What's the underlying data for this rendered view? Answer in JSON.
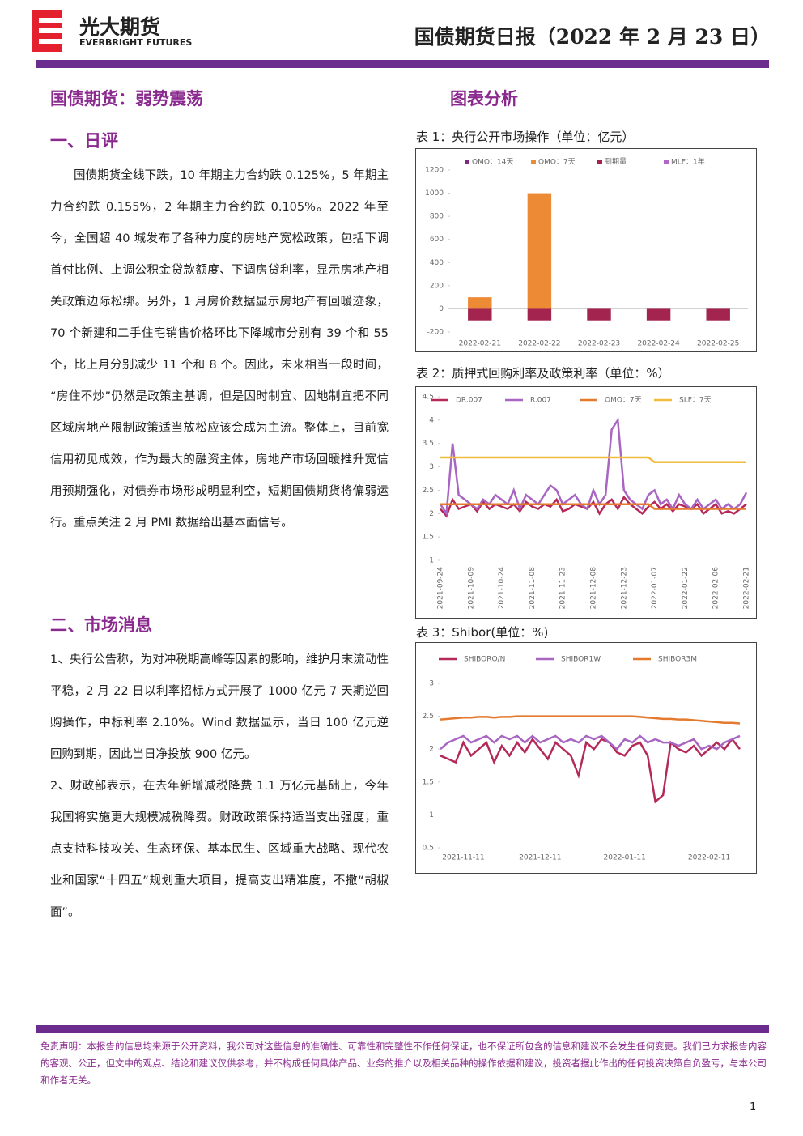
{
  "header": {
    "company": "光大期货",
    "company_en": "EVERBRIGHT FUTURES",
    "title": "国债期货日报（2022 年 2 月 23 日）"
  },
  "left": {
    "headline": "国债期货：弱势震荡",
    "section1": {
      "title": "一、日评",
      "text": "国债期货全线下跌，10 年期主力合约跌 0.125%，5 年期主力合约跌 0.155%，2 年期主力合约跌 0.105%。2022 年至今，全国超 40 城发布了各种力度的房地产宽松政策，包括下调首付比例、上调公积金贷款额度、下调房贷利率，显示房地产相关政策边际松绑。另外，1 月房价数据显示房地产有回暖迹象，70 个新建和二手住宅销售价格环比下降城市分别有 39 个和 55 个，比上月分别减少 11 个和 8 个。因此，未来相当一段时间，“房住不炒”仍然是政策主基调，但是因时制宜、因地制宜把不同区域房地产限制政策适当放松应该会成为主流。整体上，目前宽信用初见成效，作为最大的融资主体，房地产市场回暖推升宽信用预期强化，对债券市场形成明显利空，短期国债期货将偏弱运行。重点关注 2 月 PMI 数据给出基本面信号。"
    },
    "section2": {
      "title": "二、市场消息",
      "items": [
        "1、央行公告称，为对冲税期高峰等因素的影响，维护月末流动性平稳，2 月 22 日以利率招标方式开展了 1000 亿元 7 天期逆回购操作，中标利率 2.10%。Wind 数据显示，当日 100 亿元逆回购到期，因此当日净投放 900 亿元。",
        "2、财政部表示，在去年新增减税降费 1.1 万亿元基础上，今年我国将实施更大规模减税降费。财政政策保持适当支出强度，重点支持科技攻关、生态环保、基本民生、区域重大战略、现代农业和国家“十四五”规划重大项目，提高支出精准度，不撒“胡椒面”。"
      ]
    }
  },
  "right": {
    "headline": "图表分析"
  },
  "chart_data": [
    {
      "type": "bar",
      "title": "表 1：央行公开市场操作（单位：亿元）",
      "categories": [
        "2022-02-21",
        "2022-02-22",
        "2022-02-23",
        "2022-02-24",
        "2022-02-25"
      ],
      "series": [
        {
          "name": "OMO：14天",
          "color": "#7b2a7e",
          "values": [
            0,
            0,
            0,
            0,
            0
          ]
        },
        {
          "name": "OMO：7天",
          "color": "#ed8a36",
          "values": [
            100,
            1000,
            0,
            0,
            0
          ]
        },
        {
          "name": "到期量",
          "color": "#a3254f",
          "values": [
            -100,
            -100,
            -100,
            -100,
            -100
          ]
        },
        {
          "name": "MLF：1年",
          "color": "#b565c6",
          "values": [
            0,
            0,
            0,
            0,
            0
          ]
        }
      ],
      "ylim": [
        -200,
        1200
      ],
      "yticks": [
        -200,
        0,
        200,
        400,
        600,
        800,
        1000,
        1200
      ]
    },
    {
      "type": "line",
      "title": "表 2：质押式回购利率及政策利率（单位：%）",
      "categories": [
        "2021-09-24",
        null,
        null,
        null,
        null,
        "2021-10-09",
        null,
        null,
        null,
        null,
        "2021-10-24",
        null,
        null,
        null,
        null,
        "2021-11-08",
        null,
        null,
        null,
        null,
        "2021-11-23",
        null,
        null,
        null,
        null,
        "2021-12-08",
        null,
        null,
        null,
        null,
        "2021-12-23",
        null,
        null,
        null,
        null,
        "2022-01-07",
        null,
        null,
        null,
        null,
        "2022-01-22",
        null,
        null,
        null,
        null,
        "2022-02-06",
        null,
        null,
        null,
        null,
        "2022-02-21"
      ],
      "series": [
        {
          "name": "DR.007",
          "color": "#b5285a",
          "values": [
            2.1,
            1.95,
            2.3,
            2.1,
            2.15,
            2.2,
            2.05,
            2.25,
            2.1,
            2.2,
            2.15,
            2.1,
            2.2,
            2.05,
            2.25,
            2.15,
            2.1,
            2.2,
            2.15,
            2.3,
            2.05,
            2.1,
            2.2,
            2.15,
            2.1,
            2.25,
            2.0,
            2.2,
            2.3,
            2.1,
            2.35,
            2.2,
            2.1,
            2.0,
            2.15,
            2.25,
            2.1,
            2.2,
            2.05,
            2.2,
            2.15,
            2.1,
            2.2,
            2.0,
            2.1,
            2.2,
            2.0,
            2.05,
            2.0,
            2.1,
            2.2
          ]
        },
        {
          "name": "R.007",
          "color": "#a865c2",
          "values": [
            2.2,
            2.0,
            3.5,
            2.4,
            2.3,
            2.2,
            2.1,
            2.3,
            2.2,
            2.4,
            2.3,
            2.2,
            2.5,
            2.1,
            2.4,
            2.3,
            2.2,
            2.4,
            2.6,
            2.5,
            2.2,
            2.3,
            2.4,
            2.2,
            2.1,
            2.5,
            2.2,
            2.4,
            3.8,
            4.0,
            2.5,
            2.3,
            2.2,
            2.1,
            2.4,
            2.5,
            2.2,
            2.3,
            2.1,
            2.4,
            2.2,
            2.1,
            2.3,
            2.1,
            2.2,
            2.3,
            2.1,
            2.2,
            2.1,
            2.2,
            2.45
          ]
        },
        {
          "name": "OMO：7天",
          "color": "#e47a2e",
          "values": [
            2.2,
            2.2,
            2.2,
            2.2,
            2.2,
            2.2,
            2.2,
            2.2,
            2.2,
            2.2,
            2.2,
            2.2,
            2.2,
            2.2,
            2.2,
            2.2,
            2.2,
            2.2,
            2.2,
            2.2,
            2.2,
            2.2,
            2.2,
            2.2,
            2.2,
            2.2,
            2.2,
            2.2,
            2.2,
            2.2,
            2.2,
            2.2,
            2.2,
            2.2,
            2.2,
            2.1,
            2.1,
            2.1,
            2.1,
            2.1,
            2.1,
            2.1,
            2.1,
            2.1,
            2.1,
            2.1,
            2.1,
            2.1,
            2.1,
            2.1,
            2.1
          ]
        },
        {
          "name": "SLF：7天",
          "color": "#f0bd3c",
          "values": [
            3.2,
            3.2,
            3.2,
            3.2,
            3.2,
            3.2,
            3.2,
            3.2,
            3.2,
            3.2,
            3.2,
            3.2,
            3.2,
            3.2,
            3.2,
            3.2,
            3.2,
            3.2,
            3.2,
            3.2,
            3.2,
            3.2,
            3.2,
            3.2,
            3.2,
            3.2,
            3.2,
            3.2,
            3.2,
            3.2,
            3.2,
            3.2,
            3.2,
            3.2,
            3.2,
            3.1,
            3.1,
            3.1,
            3.1,
            3.1,
            3.1,
            3.1,
            3.1,
            3.1,
            3.1,
            3.1,
            3.1,
            3.1,
            3.1,
            3.1,
            3.1
          ]
        }
      ],
      "ylim": [
        1,
        4.5
      ],
      "yticks": [
        1,
        1.5,
        2,
        2.5,
        3,
        3.5,
        4,
        4.5
      ]
    },
    {
      "type": "line",
      "title": "表 3：Shibor(单位：%)",
      "categories": [
        null,
        null,
        null,
        "2021-11-11",
        null,
        null,
        null,
        null,
        null,
        null,
        null,
        null,
        null,
        "2021-12-11",
        null,
        null,
        null,
        null,
        null,
        null,
        null,
        null,
        null,
        null,
        "2022-01-11",
        null,
        null,
        null,
        null,
        null,
        null,
        null,
        null,
        null,
        null,
        "2022-02-11",
        null,
        null,
        null,
        null
      ],
      "series": [
        {
          "name": "SHIBORO/N",
          "color": "#b5285a",
          "values": [
            1.9,
            1.85,
            1.8,
            2.1,
            1.9,
            2.0,
            2.1,
            1.8,
            2.05,
            1.9,
            2.1,
            1.95,
            2.15,
            2.0,
            1.85,
            2.1,
            2.0,
            1.9,
            1.6,
            2.1,
            2.0,
            2.15,
            2.1,
            1.95,
            1.9,
            2.05,
            2.1,
            1.9,
            1.2,
            1.3,
            2.1,
            2.0,
            1.95,
            2.05,
            1.9,
            2.0,
            2.1,
            2.0,
            2.15,
            2.0
          ]
        },
        {
          "name": "SHIBOR1W",
          "color": "#a865c2",
          "values": [
            2.0,
            2.1,
            2.15,
            2.2,
            2.1,
            2.15,
            2.2,
            2.1,
            2.2,
            2.15,
            2.2,
            2.1,
            2.2,
            2.1,
            2.15,
            2.2,
            2.1,
            2.15,
            2.1,
            2.2,
            2.15,
            2.2,
            2.1,
            2.0,
            2.15,
            2.1,
            2.2,
            2.1,
            2.15,
            2.1,
            2.1,
            2.05,
            2.1,
            2.15,
            2.0,
            2.05,
            2.0,
            2.1,
            2.15,
            2.2
          ]
        },
        {
          "name": "SHIBOR3M",
          "color": "#e47a2e",
          "values": [
            2.45,
            2.46,
            2.47,
            2.48,
            2.48,
            2.49,
            2.49,
            2.48,
            2.49,
            2.49,
            2.5,
            2.5,
            2.5,
            2.5,
            2.5,
            2.5,
            2.5,
            2.5,
            2.5,
            2.5,
            2.5,
            2.5,
            2.5,
            2.5,
            2.5,
            2.5,
            2.49,
            2.48,
            2.47,
            2.46,
            2.46,
            2.45,
            2.45,
            2.44,
            2.43,
            2.42,
            2.41,
            2.4,
            2.4,
            2.39
          ]
        }
      ],
      "ylim": [
        0.5,
        3
      ],
      "yticks": [
        0.5,
        1,
        1.5,
        2,
        2.5,
        3
      ]
    }
  ],
  "footer": {
    "disclaimer": "免责声明：本报告的信息均来源于公开资料，我公司对这些信息的准确性、可靠性和完整性不作任何保证，也不保证所包含的信息和建议不会发生任何变更。我们已力求报告内容的客观、公正，但文中的观点、结论和建议仅供参考，并不构成任何具体产品、业务的推介以及相关品种的操作依据和建议，投资者据此作出的任何投资决策自负盈亏，与本公司和作者无关。",
    "page": "1"
  }
}
